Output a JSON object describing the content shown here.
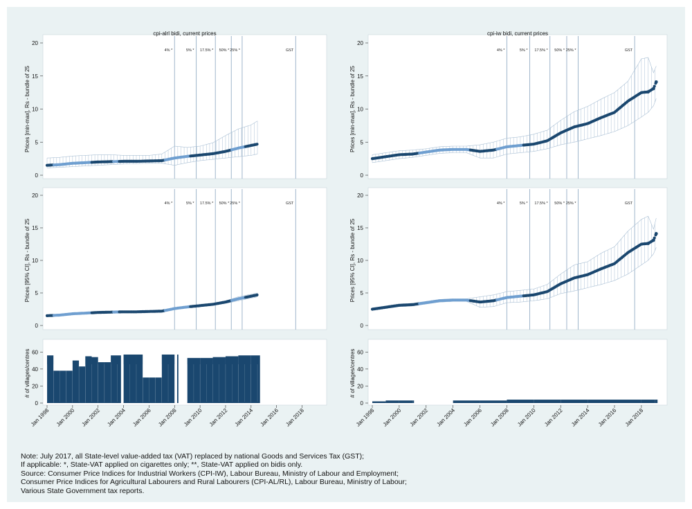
{
  "colors": {
    "background": "#eaf2f3",
    "panel": "#ffffff",
    "dark_blue": "#1a476f",
    "light_blue": "#6f9fd0",
    "ci_line": "#a9bfd4",
    "vline": "#9fb6cb"
  },
  "events": {
    "labels": [
      "4% *",
      "5% *",
      "17.5% *",
      "50% *",
      "25% *",
      "GST"
    ],
    "dates": [
      2008.0,
      2009.7,
      2011.2,
      2012.45,
      2013.3,
      2017.5
    ]
  },
  "x_ticks": [
    "Jan 1998",
    "Jan 2000",
    "Jan 2002",
    "Jan 2004",
    "Jan 2006",
    "Jan 2008",
    "Jan 2010",
    "Jan 2012",
    "Jan 2014",
    "Jan 2016",
    "Jan 2018"
  ],
  "y_ticks_price": [
    "0",
    "5",
    "10",
    "15",
    "20"
  ],
  "y_ticks_count": [
    "0",
    "20",
    "40",
    "60"
  ],
  "chart_data": [
    {
      "type": "scatter",
      "panel": "left-top",
      "title": "cpi-alrl bidi, current prices",
      "ylabel": "Prices [min-max], Rs - bundle of 25",
      "ylim": [
        0,
        20
      ],
      "series": [
        {
          "x": [
            1998.0,
            1999.0,
            2000.0,
            2001.0,
            2002.0,
            2003.0,
            2004.0,
            2005.0,
            2006.0,
            2007.0,
            2008.0,
            2009.0,
            2010.0,
            2011.0,
            2012.0,
            2013.0,
            2014.0,
            2014.5
          ],
          "values": [
            1.5,
            1.6,
            1.8,
            1.9,
            2.0,
            2.05,
            2.1,
            2.1,
            2.15,
            2.2,
            2.6,
            2.85,
            3.05,
            3.25,
            3.6,
            4.1,
            4.5,
            4.7
          ]
        }
      ],
      "ci_low": [
        1.1,
        1.2,
        1.3,
        1.4,
        1.5,
        1.6,
        1.7,
        1.75,
        1.8,
        1.8,
        1.5,
        1.9,
        2.2,
        2.4,
        2.6,
        2.8,
        3.0,
        3.2
      ],
      "ci_high": [
        2.6,
        2.7,
        2.9,
        3.0,
        3.1,
        3.1,
        3.0,
        3.0,
        3.0,
        3.2,
        4.4,
        4.2,
        4.4,
        4.9,
        6.0,
        7.0,
        7.6,
        8.2
      ]
    },
    {
      "type": "scatter",
      "panel": "right-top",
      "title": "cpi-iw bidi, current prices",
      "ylabel": "Prices [min-max], Rs - bundle of 25",
      "ylim": [
        0,
        20
      ],
      "series": [
        {
          "x": [
            1998.0,
            1999.0,
            2000.0,
            2001.0,
            2002.0,
            2003.0,
            2004.0,
            2005.0,
            2006.0,
            2007.0,
            2008.0,
            2009.0,
            2010.0,
            2011.0,
            2012.0,
            2013.0,
            2014.0,
            2015.0,
            2016.0,
            2017.0,
            2018.0,
            2018.5,
            2018.9,
            2019.1
          ],
          "values": [
            2.5,
            2.8,
            3.1,
            3.2,
            3.5,
            3.8,
            3.9,
            3.9,
            3.6,
            3.8,
            4.3,
            4.5,
            4.7,
            5.2,
            6.4,
            7.3,
            7.8,
            8.7,
            9.5,
            11.2,
            12.5,
            12.6,
            13.1,
            14.1
          ]
        }
      ],
      "ci_low": [
        1.9,
        2.2,
        2.5,
        2.7,
        3.0,
        3.3,
        3.4,
        3.4,
        2.6,
        2.6,
        3.2,
        3.4,
        3.6,
        4.0,
        4.6,
        5.0,
        5.5,
        6.0,
        6.6,
        7.5,
        8.8,
        9.5,
        10.5,
        11.6
      ],
      "ci_high": [
        3.1,
        3.4,
        3.7,
        3.8,
        4.0,
        4.3,
        4.4,
        4.4,
        4.6,
        5.0,
        5.6,
        5.8,
        6.2,
        6.8,
        8.3,
        9.6,
        10.4,
        11.5,
        12.5,
        14.2,
        17.6,
        17.8,
        15.5,
        16.5
      ]
    },
    {
      "type": "scatter",
      "panel": "left-middle",
      "title": "",
      "ylabel": "Prices [95% CI], Rs - bundle of 25",
      "ylim": [
        0,
        20
      ],
      "series": [
        {
          "x": [
            1998.0,
            1999.0,
            2000.0,
            2001.0,
            2002.0,
            2003.0,
            2004.0,
            2005.0,
            2006.0,
            2007.0,
            2008.0,
            2009.0,
            2010.0,
            2011.0,
            2012.0,
            2013.0,
            2014.0,
            2014.5
          ],
          "values": [
            1.5,
            1.6,
            1.8,
            1.9,
            2.0,
            2.05,
            2.1,
            2.1,
            2.15,
            2.2,
            2.6,
            2.85,
            3.05,
            3.25,
            3.6,
            4.1,
            4.5,
            4.7
          ]
        }
      ],
      "ci_low": [
        1.4,
        1.5,
        1.7,
        1.8,
        1.9,
        1.95,
        2.0,
        2.0,
        2.05,
        2.1,
        2.5,
        2.75,
        2.95,
        3.1,
        3.4,
        3.8,
        4.2,
        4.4
      ],
      "ci_high": [
        1.6,
        1.7,
        1.9,
        2.0,
        2.1,
        2.15,
        2.2,
        2.2,
        2.25,
        2.3,
        2.7,
        2.95,
        3.15,
        3.4,
        3.8,
        4.4,
        4.8,
        5.0
      ]
    },
    {
      "type": "scatter",
      "panel": "right-middle",
      "title": "",
      "ylabel": "Prices [95% CI], Rs - bundle of 25",
      "ylim": [
        0,
        20
      ],
      "series": [
        {
          "x": [
            1998.0,
            1999.0,
            2000.0,
            2001.0,
            2002.0,
            2003.0,
            2004.0,
            2005.0,
            2006.0,
            2007.0,
            2008.0,
            2009.0,
            2010.0,
            2011.0,
            2012.0,
            2013.0,
            2014.0,
            2015.0,
            2016.0,
            2017.0,
            2018.0,
            2018.5,
            2018.9,
            2019.1
          ],
          "values": [
            2.5,
            2.8,
            3.1,
            3.2,
            3.5,
            3.8,
            3.9,
            3.9,
            3.6,
            3.8,
            4.3,
            4.5,
            4.7,
            5.2,
            6.4,
            7.3,
            7.8,
            8.7,
            9.5,
            11.2,
            12.5,
            12.6,
            13.1,
            14.1
          ]
        }
      ],
      "ci_low": [
        2.3,
        2.6,
        2.9,
        3.0,
        3.3,
        3.6,
        3.7,
        3.7,
        2.8,
        2.9,
        3.5,
        3.6,
        3.8,
        4.1,
        4.9,
        5.3,
        5.8,
        6.3,
        6.9,
        7.9,
        9.3,
        10.0,
        11.0,
        12.0
      ],
      "ci_high": [
        2.7,
        3.0,
        3.3,
        3.4,
        3.7,
        4.0,
        4.1,
        4.1,
        4.4,
        4.7,
        5.2,
        5.4,
        5.6,
        6.3,
        7.9,
        9.3,
        9.8,
        11.1,
        12.1,
        14.5,
        16.3,
        16.8,
        14.8,
        16.5
      ]
    },
    {
      "type": "bar",
      "panel": "left-bottom",
      "title": "",
      "ylabel": "# of villages/centres",
      "ylim": [
        0,
        70
      ],
      "x": [
        1998.0,
        1998.5,
        1999.5,
        2000.0,
        2000.5,
        2001.0,
        2001.5,
        2002.0,
        2002.5,
        2003.0,
        2004.0,
        2005.0,
        2005.5,
        2006.5,
        2007.0,
        2009.0,
        2010.0,
        2011.0,
        2012.0,
        2013.0,
        2014.0
      ],
      "values": [
        56,
        38,
        38,
        50,
        43,
        55,
        54,
        48,
        48,
        56,
        57,
        57,
        30,
        30,
        57,
        53,
        53,
        54,
        55,
        56,
        56
      ],
      "gaps": [
        [
          2003.8,
          2004.0
        ],
        [
          2008.0,
          2008.2
        ],
        [
          2008.3,
          2009.0
        ]
      ]
    },
    {
      "type": "bar",
      "panel": "right-bottom",
      "title": "",
      "ylabel": "# of villages/centres",
      "ylim": [
        0,
        70
      ],
      "x": [
        1998.0,
        1999.0,
        2000.0,
        2001.0,
        2004.0,
        2006.0,
        2008.0,
        2010.0,
        2012.0,
        2014.0,
        2016.0,
        2018.0,
        2019.0
      ],
      "values": [
        2,
        3,
        3,
        3,
        3,
        3,
        4,
        4,
        4,
        4,
        4,
        4,
        4
      ],
      "gaps": [
        [
          2001.1,
          2004.0
        ]
      ]
    }
  ],
  "note": [
    "Note: July 2017, all State-level value-added tax (VAT) replaced by national Goods and Services Tax (GST);",
    "If applicable: *, State-VAT applied on cigarettes only; **, State-VAT applied on bidis only.",
    "Source: Consumer Price Indices for Industrial Workers (CPI-IW), Labour Bureau, Ministry of Labour and Employment;",
    "Consumer Price Indices for Agricultural Labourers and Rural Labourers (CPI-AL/RL), Labour Bureau, Ministry of Labour;",
    "Various State Government tax reports."
  ]
}
